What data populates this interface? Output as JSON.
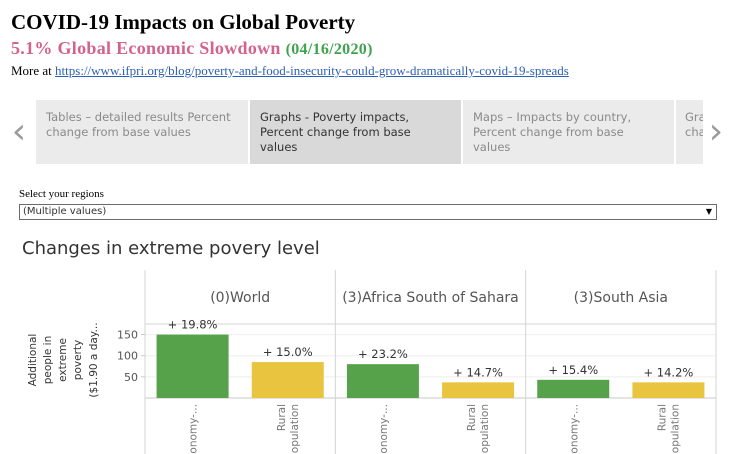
{
  "header": {
    "title": "COVID-19 Impacts on Global Poverty",
    "subtitle": "5.1% Global Economic Slowdown",
    "date": "(04/16/2020)",
    "more_prefix": "More at",
    "link_text": "https://www.ifpri.org/blog/poverty-and-food-insecurity-could-grow-dramatically-covid-19-spreads",
    "colors": {
      "subtitle": "#d3628d",
      "date": "#3fa34d",
      "link": "#2a5fb7"
    }
  },
  "carousel": {
    "prev_icon": "chevron-left-icon",
    "next_icon": "chevron-right-icon",
    "tabs": [
      {
        "label": "Tables – detailed results Percent change from base values",
        "active": false
      },
      {
        "label": "Graphs - Poverty impacts, Percent change from base values",
        "active": true
      },
      {
        "label": "Maps – Impacts by country, Percent change from base values",
        "active": false
      },
      {
        "label": "Gra chang",
        "active": false
      }
    ]
  },
  "filter": {
    "label": "Select your regions",
    "value": "(Multiple values)",
    "caret_icon": "caret-down-icon"
  },
  "chart_data": {
    "type": "bar",
    "title": "Changes in extreme povery level",
    "ylabel": [
      "Additional",
      "people in",
      "extreme",
      "poverty",
      "($1.90 a day..."
    ],
    "yticks": [
      50,
      100,
      150
    ],
    "ylim": [
      0,
      175
    ],
    "panels": [
      {
        "name": "(0)World",
        "bars": [
          {
            "category": "conomy-...",
            "value": 150,
            "label": "+ 19.8%",
            "color": "#55a24a"
          },
          {
            "category": [
              "Rural",
              "opulation"
            ],
            "value": 85,
            "label": "+ 15.0%",
            "color": "#e9c53f"
          }
        ]
      },
      {
        "name": "(3)Africa South of Sahara",
        "bars": [
          {
            "category": "conomy-...",
            "value": 80,
            "label": "+ 23.2%",
            "color": "#55a24a"
          },
          {
            "category": [
              "Rural",
              "opulation"
            ],
            "value": 37,
            "label": "+ 14.7%",
            "color": "#e9c53f"
          }
        ]
      },
      {
        "name": "(3)South Asia",
        "bars": [
          {
            "category": "conomy-...",
            "value": 43,
            "label": "+ 15.4%",
            "color": "#55a24a"
          },
          {
            "category": [
              "Rural",
              "opulation"
            ],
            "value": 37,
            "label": "+ 14.2%",
            "color": "#e9c53f"
          }
        ]
      }
    ]
  }
}
